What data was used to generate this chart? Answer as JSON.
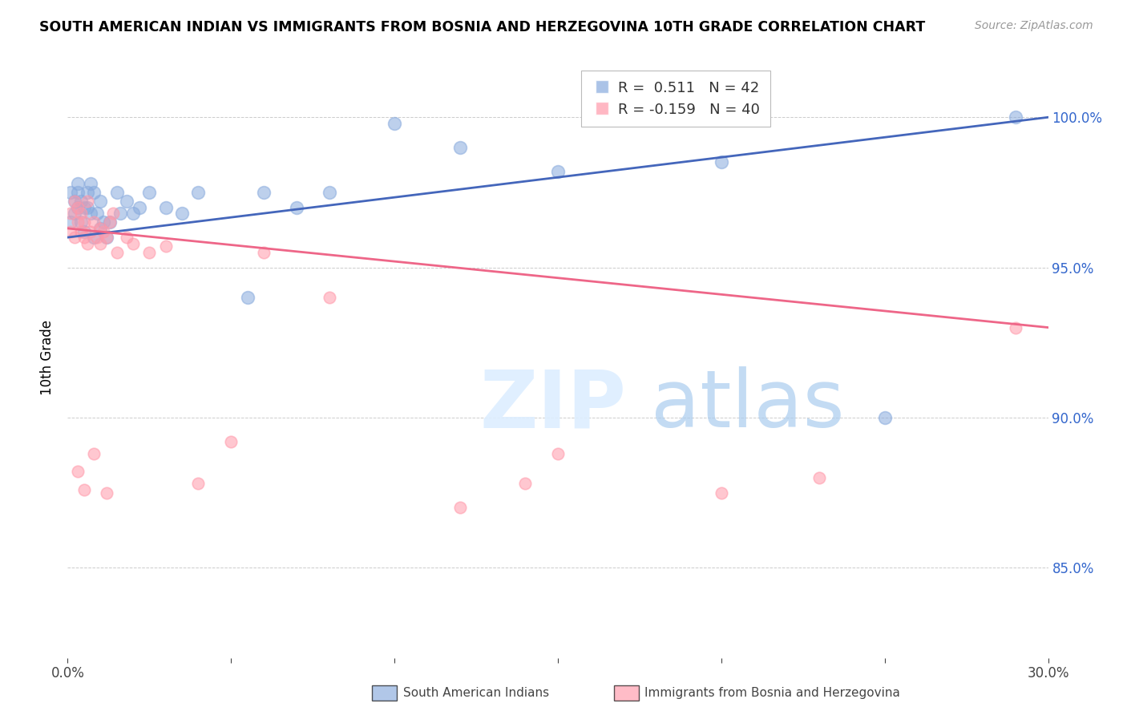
{
  "title": "SOUTH AMERICAN INDIAN VS IMMIGRANTS FROM BOSNIA AND HERZEGOVINA 10TH GRADE CORRELATION CHART",
  "source": "Source: ZipAtlas.com",
  "ylabel": "10th Grade",
  "legend1_r": "0.511",
  "legend1_n": "42",
  "legend2_r": "-0.159",
  "legend2_n": "40",
  "blue_color": "#88AADD",
  "pink_color": "#FF99AA",
  "line_blue": "#4466BB",
  "line_pink": "#EE6688",
  "legend_label1": "South American Indians",
  "legend_label2": "Immigrants from Bosnia and Herzegovina",
  "xlim": [
    0.0,
    0.3
  ],
  "ylim": [
    0.82,
    1.02
  ],
  "yticks": [
    0.85,
    0.9,
    0.95,
    1.0
  ],
  "ytick_labels": [
    "85.0%",
    "90.0%",
    "95.0%",
    "100.0%"
  ],
  "xtick_left": "0.0%",
  "xtick_right": "30.0%",
  "blue_x": [
    0.001,
    0.001,
    0.002,
    0.002,
    0.003,
    0.003,
    0.003,
    0.004,
    0.004,
    0.005,
    0.005,
    0.006,
    0.006,
    0.007,
    0.007,
    0.008,
    0.008,
    0.009,
    0.01,
    0.01,
    0.011,
    0.012,
    0.013,
    0.015,
    0.016,
    0.018,
    0.02,
    0.022,
    0.025,
    0.03,
    0.035,
    0.04,
    0.055,
    0.06,
    0.07,
    0.08,
    0.1,
    0.12,
    0.15,
    0.2,
    0.25,
    0.29
  ],
  "blue_y": [
    0.965,
    0.975,
    0.972,
    0.968,
    0.978,
    0.97,
    0.975,
    0.965,
    0.972,
    0.97,
    0.962,
    0.97,
    0.975,
    0.978,
    0.968,
    0.96,
    0.975,
    0.968,
    0.963,
    0.972,
    0.965,
    0.96,
    0.965,
    0.975,
    0.968,
    0.972,
    0.968,
    0.97,
    0.975,
    0.97,
    0.968,
    0.975,
    0.94,
    0.975,
    0.97,
    0.975,
    0.998,
    0.99,
    0.982,
    0.985,
    0.9,
    1.0
  ],
  "pink_x": [
    0.001,
    0.001,
    0.002,
    0.002,
    0.003,
    0.003,
    0.004,
    0.004,
    0.005,
    0.005,
    0.006,
    0.006,
    0.007,
    0.008,
    0.009,
    0.01,
    0.01,
    0.011,
    0.012,
    0.013,
    0.014,
    0.015,
    0.018,
    0.02,
    0.025,
    0.03,
    0.04,
    0.05,
    0.06,
    0.08,
    0.12,
    0.14,
    0.15,
    0.2,
    0.23,
    0.29,
    0.003,
    0.005,
    0.008,
    0.012
  ],
  "pink_y": [
    0.962,
    0.968,
    0.96,
    0.972,
    0.965,
    0.97,
    0.962,
    0.968,
    0.96,
    0.965,
    0.972,
    0.958,
    0.962,
    0.965,
    0.96,
    0.958,
    0.963,
    0.962,
    0.96,
    0.965,
    0.968,
    0.955,
    0.96,
    0.958,
    0.955,
    0.957,
    0.878,
    0.892,
    0.955,
    0.94,
    0.87,
    0.878,
    0.888,
    0.875,
    0.88,
    0.93,
    0.882,
    0.876,
    0.888,
    0.875
  ]
}
